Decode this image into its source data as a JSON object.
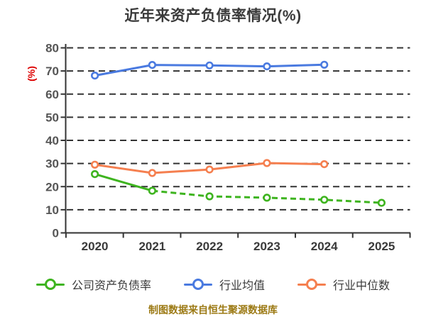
{
  "colors": {
    "background": "#ffffff",
    "title": "#3a3a3a",
    "ylabel": "#dd0000",
    "grid": "#333333",
    "axis": "#333333",
    "ytick_label": "#555555",
    "xtick_label": "#3a3a3a",
    "legend_text": "#3a3a3a",
    "footer": "#9c7a15",
    "marker_fill": "#ffffff",
    "series_green": "#3eb41f",
    "series_blue": "#4a7ae0",
    "series_orange": "#f57f4f"
  },
  "chart_data": {
    "type": "line",
    "title": "近年来资产负债率情况(%)",
    "ylabel": "(%)",
    "xlabel": "",
    "categories": [
      "2020",
      "2021",
      "2022",
      "2023",
      "2024",
      "2025"
    ],
    "yticks": [
      0,
      10,
      20,
      30,
      40,
      50,
      60,
      70,
      80
    ],
    "ylim": [
      0,
      80
    ],
    "grid": "horizontal-dashed",
    "legend_position": "bottom",
    "series": [
      {
        "name": "公司资产负债率",
        "color": "#3eb41f",
        "values": [
          25.4,
          18.2,
          15.8,
          15.2,
          14.3,
          13.0
        ],
        "line_style": "solid-then-dashed",
        "dashed_from_index": 1
      },
      {
        "name": "行业均值",
        "color": "#4a7ae0",
        "values": [
          68.0,
          72.6,
          72.4,
          72.0,
          72.7
        ],
        "line_style": "solid"
      },
      {
        "name": "行业中位数",
        "color": "#f57f4f",
        "values": [
          29.5,
          25.9,
          27.4,
          30.2,
          29.7
        ],
        "line_style": "solid"
      }
    ]
  },
  "legend": {
    "items": [
      {
        "label": "公司资产负债率",
        "color": "#3eb41f"
      },
      {
        "label": "行业均值",
        "color": "#4a7ae0"
      },
      {
        "label": "行业中位数",
        "color": "#f57f4f"
      }
    ]
  },
  "footer": "制图数据来自恒生聚源数据库"
}
